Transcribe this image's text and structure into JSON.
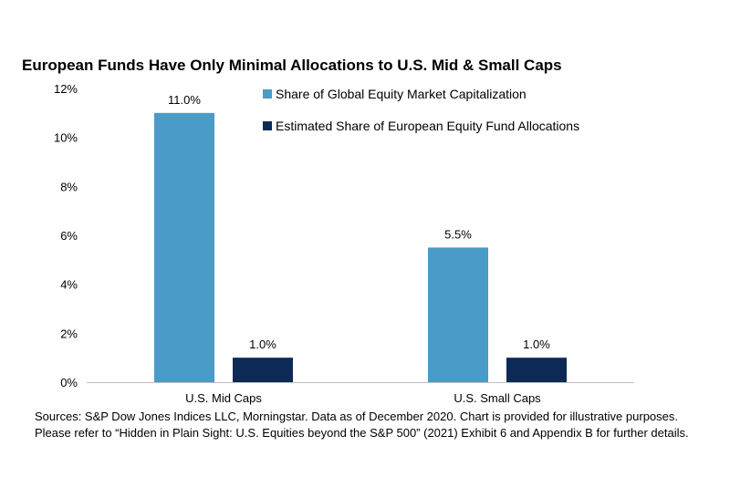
{
  "chart_data": {
    "type": "bar",
    "title": "European Funds Have Only Minimal Allocations to U.S. Mid & Small Caps",
    "categories": [
      "U.S. Mid Caps",
      "U.S. Small Caps"
    ],
    "series": [
      {
        "name": "Share of Global Equity Market Capitalization",
        "values": [
          11.0,
          5.5
        ],
        "labels": [
          "11.0%",
          "5.5%"
        ],
        "color": "#4a9bc7"
      },
      {
        "name": "Estimated Share of European Equity Fund Allocations",
        "values": [
          1.0,
          1.0
        ],
        "labels": [
          "1.0%",
          "1.0%"
        ],
        "color": "#0c2a55"
      }
    ],
    "ylim": [
      0,
      12
    ],
    "yticks": [
      "0%",
      "2%",
      "4%",
      "6%",
      "8%",
      "10%",
      "12%"
    ],
    "xlabel": "",
    "ylabel": "",
    "grid": false,
    "legend_position": "top-right"
  },
  "source_note": "Sources: S&P Dow Jones Indices LLC, Morningstar.  Data as of December 2020.  Chart is provided for illustrative purposes.  Please refer to “Hidden in Plain Sight:  U.S. Equities beyond the S&P 500” (2021) Exhibit 6 and Appendix B for further details."
}
